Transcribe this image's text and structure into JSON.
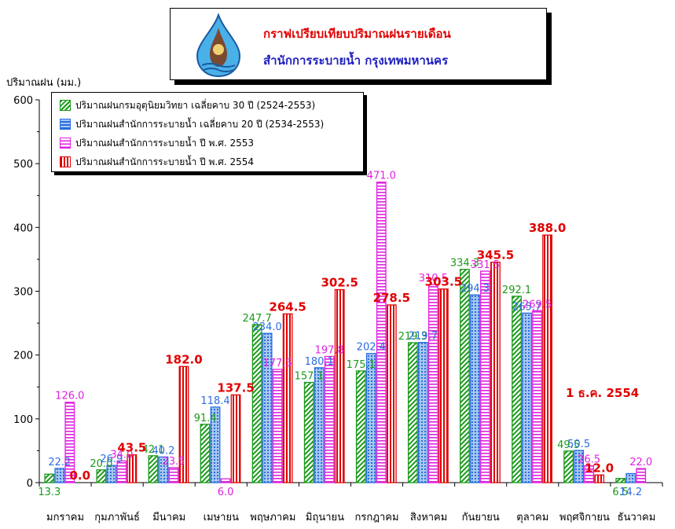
{
  "header": {
    "title": "กราฟเปรียบเทียบปริมาณฝนรายเดือน",
    "subtitle": "สำนักการระบายน้ำ กรุงเทพมหานคร",
    "logo_icon": "drainage-department-logo"
  },
  "annotation": "1 ธ.ค. 2554",
  "colors": {
    "green": "#1a9a1a",
    "blue": "#2a6de0",
    "magenta": "#e020e0",
    "red": "#e00000",
    "title_red": "#e00000",
    "title_blue": "#2020c0"
  },
  "chart_data": {
    "type": "bar",
    "ylabel": "ปริมาณฝน (มม.)",
    "ylim": [
      0,
      600
    ],
    "yticks": [
      0,
      100,
      200,
      300,
      400,
      500,
      600
    ],
    "grid": false,
    "legend_position": "top-left",
    "categories": [
      "มกราคม",
      "กุมภาพันธ์",
      "มีนาคม",
      "เมษายน",
      "พฤษภาคม",
      "มิถุนายน",
      "กรกฎาคม",
      "สิงหาคม",
      "กันยายน",
      "ตุลาคม",
      "พฤศจิกายน",
      "ธันวาคม"
    ],
    "series": [
      {
        "name": "ปริมาณฝนกรมอุตุนิยมวิทยา เฉลี่ยคาบ 30 ปี (2524-2553)",
        "color": "#1a9a1a",
        "values": [
          13.3,
          20.0,
          42.1,
          91.4,
          247.7,
          157.1,
          175.1,
          219.3,
          334.3,
          292.1,
          49.5,
          6.5
        ],
        "labels": [
          "13.3",
          "20.0",
          "42.1",
          "91.4",
          "247.7",
          "157.1",
          "175.1",
          "219.3",
          "334.3",
          "292.1",
          "49.5",
          "6.5"
        ]
      },
      {
        "name": "ปริมาณฝนสำนักการระบายน้ำ เฉลี่ยคาบ 20 ปี (2534-2553)",
        "color": "#2a6de0",
        "values": [
          22.2,
          26.9,
          40.2,
          118.4,
          234.0,
          180.1,
          202.4,
          219.7,
          294.3,
          265.7,
          50.5,
          14.2
        ],
        "labels": [
          "22.2",
          "26.9",
          "40.2",
          "118.4",
          "234.0",
          "180.1",
          "202.4",
          "219.7",
          "294.3",
          "265.7",
          "50.5",
          "14.2"
        ]
      },
      {
        "name": "ปริมาณฝนสำนักการระบายน้ำ ปี พ.ศ. 2553",
        "color": "#e020e0",
        "values": [
          126.0,
          34.0,
          23.5,
          6.0,
          177.5,
          197.8,
          471.0,
          310.5,
          331.5,
          269.5,
          26.5,
          22.0
        ],
        "labels": [
          "126.0",
          "34.0",
          "23.5",
          "6.0",
          "177.5",
          "197.8",
          "471.0",
          "310.5",
          "331.5",
          "269.5",
          "26.5",
          "22.0"
        ]
      },
      {
        "name": "ปริมาณฝนสำนักการระบายน้ำ ปี พ.ศ. 2554",
        "color": "#e00000",
        "values": [
          0.0,
          43.5,
          182.0,
          137.5,
          264.5,
          302.5,
          278.5,
          303.5,
          345.5,
          388.0,
          12.0,
          null
        ],
        "labels": [
          "0.0",
          "43.5",
          "182.0",
          "137.5",
          "264.5",
          "302.5",
          "278.5",
          "303.5",
          "345.5",
          "388.0",
          "12.0",
          ""
        ]
      }
    ]
  }
}
